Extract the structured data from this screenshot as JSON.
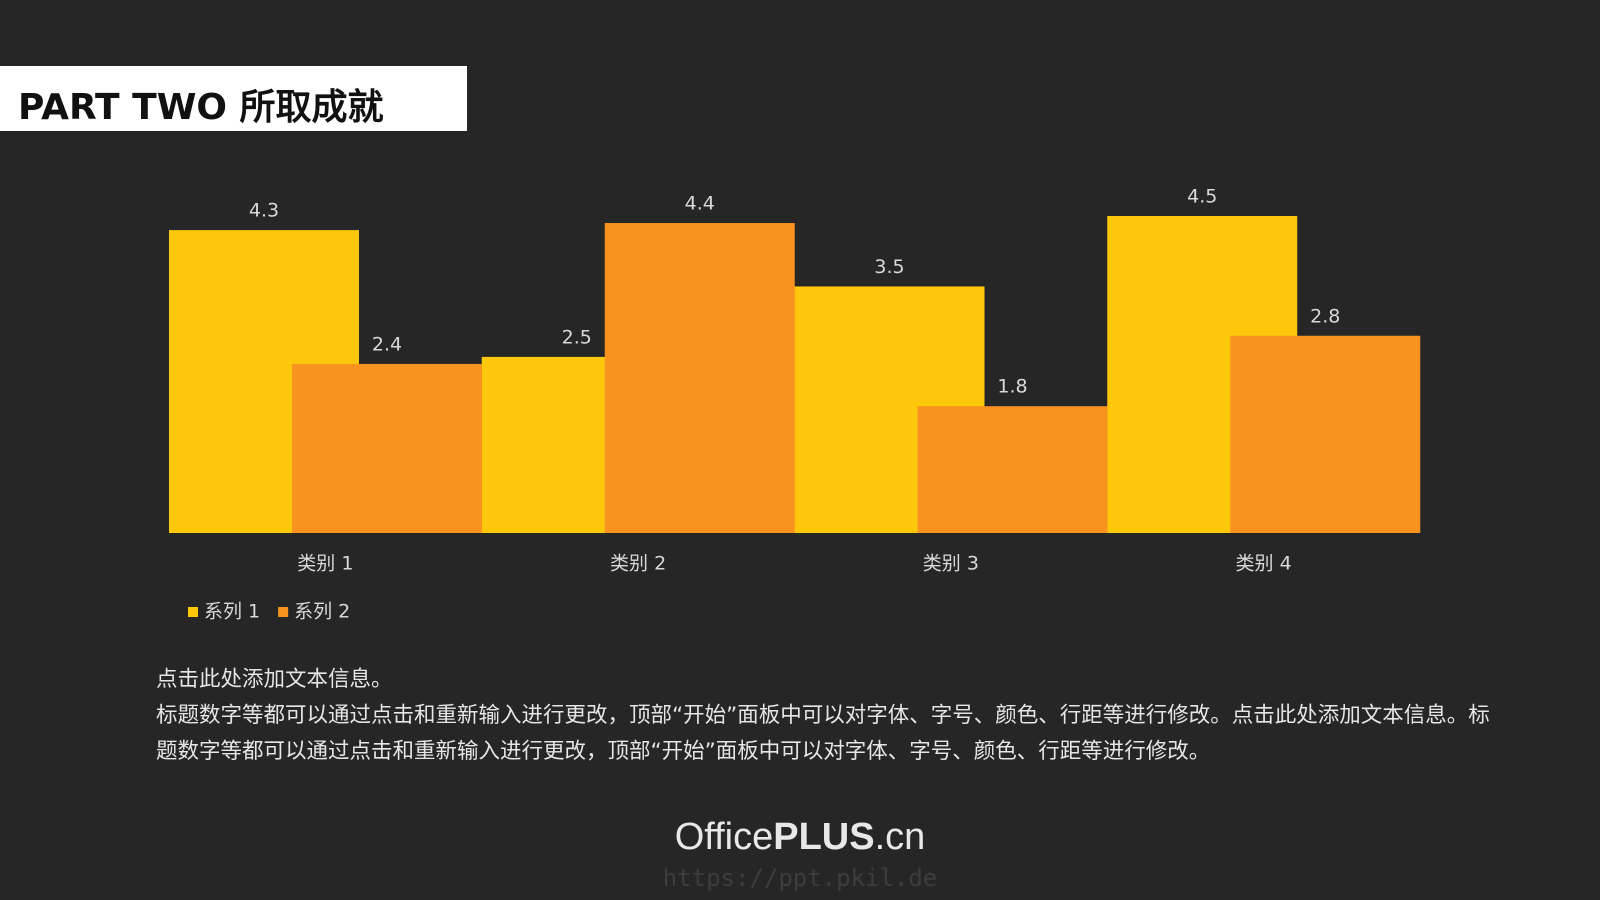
{
  "header": {
    "title": "PART TWO 所取成就"
  },
  "chart_data": {
    "type": "bar",
    "categories": [
      "类别 1",
      "类别 2",
      "类别 3",
      "类别 4"
    ],
    "series": [
      {
        "name": "系列 1",
        "color": "#fdc70b",
        "values": [
          4.3,
          2.5,
          3.5,
          4.5
        ]
      },
      {
        "name": "系列 2",
        "color": "#f7931e",
        "values": [
          2.4,
          4.4,
          1.8,
          2.8
        ]
      }
    ],
    "legend": "bottom-left"
  },
  "body": {
    "paragraphs": [
      "点击此处添加文本信息。",
      "标题数字等都可以通过点击和重新输入进行更改，顶部“开始”面板中可以对字体、字号、颜色、行距等进行修改。点击此处添加文本信息。标题数字等都可以通过点击和重新输入进行更改，顶部“开始”面板中可以对字体、字号、颜色、行距等进行修改。"
    ]
  },
  "footer": {
    "logo": [
      "Office",
      "PLUS",
      ".cn"
    ],
    "watermark": "https://ppt.pkil.de"
  }
}
